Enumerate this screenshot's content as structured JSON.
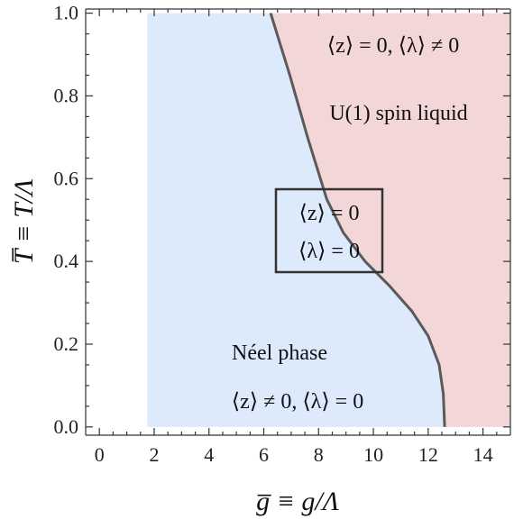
{
  "chart_data": {
    "type": "area",
    "xlabel": "g̅ ≡ g/Λ",
    "ylabel": "T̅ ≡ T/Λ",
    "xlim": [
      -0.5,
      15
    ],
    "ylim": [
      -0.02,
      1.01
    ],
    "xticks": [
      "0",
      "2",
      "4",
      "6",
      "8",
      "10",
      "12",
      "14"
    ],
    "yticks": [
      "0.0",
      "0.2",
      "0.4",
      "0.6",
      "0.8",
      "1.0"
    ],
    "grid": false,
    "colors": {
      "neel": "#dceafb",
      "spin_liquid": "#f3d6d8",
      "boundary": "#5a5a5a"
    },
    "neel_region_x_start": 1.75,
    "boundary": {
      "x": [
        12.6,
        12.55,
        12.4,
        12.0,
        11.4,
        10.6,
        9.7,
        8.9,
        8.3,
        7.6,
        6.95,
        6.25
      ],
      "y": [
        0.0,
        0.08,
        0.15,
        0.22,
        0.28,
        0.34,
        0.4,
        0.47,
        0.55,
        0.7,
        0.85,
        1.0
      ]
    },
    "annotations": {
      "spin_liquid_order": "⟨z⟩ = 0, ⟨λ⟩ ≠ 0",
      "spin_liquid_name": "U(1) spin liquid",
      "critical_line_1": "⟨z⟩ = 0",
      "critical_line_2": "⟨λ⟩ = 0",
      "neel_name": "Néel phase",
      "neel_order": "⟨z⟩ ≠ 0, ⟨λ⟩ = 0"
    }
  }
}
